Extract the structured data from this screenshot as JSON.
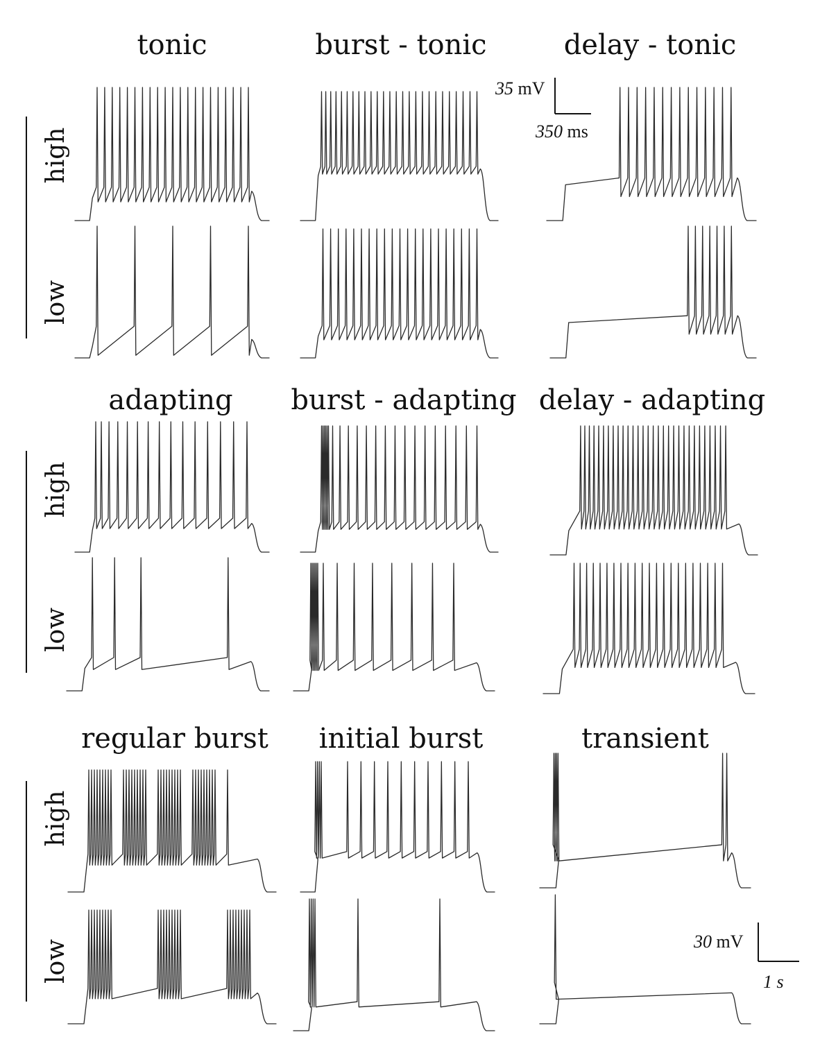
{
  "sections": [
    {
      "titles": [
        "tonic",
        "burst - tonic",
        "delay - tonic"
      ],
      "row_labels": [
        "high",
        "low"
      ]
    },
    {
      "titles": [
        "adapting",
        "burst - adapting",
        "delay - adapting"
      ],
      "row_labels": [
        "high",
        "low"
      ]
    },
    {
      "titles": [
        "regular burst",
        "initial burst",
        "transient"
      ],
      "row_labels": [
        "high",
        "low"
      ]
    }
  ],
  "scale_bars": [
    {
      "voltage_value": "35",
      "voltage_unit": "mV",
      "time_value": "350",
      "time_unit": "ms"
    },
    {
      "voltage_value": "30",
      "voltage_unit": "mV",
      "time_value": "1",
      "time_unit": "s"
    }
  ],
  "traces": [
    [
      {
        "pattern": "tonic",
        "spikes": 21
      },
      {
        "pattern": "burst-tonic",
        "spikes": 26
      },
      {
        "pattern": "delay-tonic",
        "spikes": 14,
        "delay_frac": 0.3
      }
    ],
    [
      {
        "pattern": "tonic",
        "spikes": 5
      },
      {
        "pattern": "tonic",
        "spikes": 21
      },
      {
        "pattern": "delay-tonic",
        "spikes": 7,
        "delay_frac": 0.62
      }
    ],
    [
      {
        "pattern": "adapting",
        "spikes": 15
      },
      {
        "pattern": "burst-adapting",
        "spikes": 22
      },
      {
        "pattern": "delay-adapting",
        "spikes": 30
      }
    ],
    [
      {
        "pattern": "adapting-sparse",
        "spikes": 4
      },
      {
        "pattern": "burst-adapting-low",
        "spikes": 14
      },
      {
        "pattern": "delay-adapting",
        "spikes": 22
      }
    ],
    [
      {
        "pattern": "regular-burst",
        "bursts": 5
      },
      {
        "pattern": "initial-burst",
        "spikes": 10
      },
      {
        "pattern": "transient-high"
      }
    ],
    [
      {
        "pattern": "regular-burst",
        "bursts": 3
      },
      {
        "pattern": "initial-burst-low",
        "spikes": 2
      },
      {
        "pattern": "transient-low"
      }
    ]
  ]
}
